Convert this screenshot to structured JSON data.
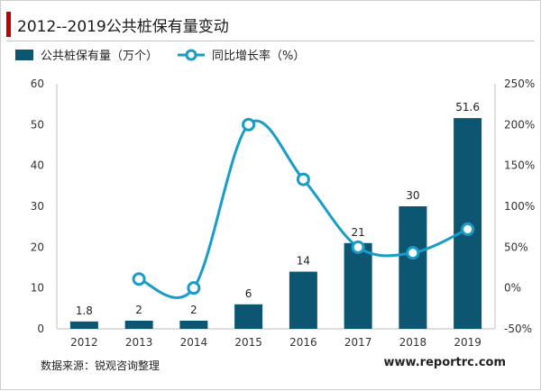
{
  "title": "2012--2019公共桩保有量变动",
  "source": "数据来源：锐观咨询整理",
  "website": "www.reportrc.com",
  "colors": {
    "bar": "#0d5671",
    "line": "#1a9cc9",
    "accent": "#c00000"
  },
  "chart_data": {
    "type": "bar",
    "categories": [
      "2012",
      "2013",
      "2014",
      "2015",
      "2016",
      "2017",
      "2018",
      "2019"
    ],
    "series": [
      {
        "name": "公共桩保有量（万个）",
        "type": "bar",
        "axis": "left",
        "values": [
          1.8,
          2,
          2,
          6,
          14,
          21,
          30,
          51.6
        ],
        "labels": [
          "1.8",
          "2",
          "2",
          "6",
          "14",
          "21",
          "30",
          "51.6"
        ]
      },
      {
        "name": "同比增长率（%）",
        "type": "line",
        "axis": "right",
        "smooth": true,
        "values": [
          null,
          11,
          0,
          200,
          133,
          50,
          43,
          72
        ]
      }
    ],
    "y_left": {
      "ylim": [
        0,
        60
      ],
      "ticks": [
        "0",
        "10",
        "20",
        "30",
        "40",
        "50",
        "60"
      ]
    },
    "y_right": {
      "ylim": [
        -50,
        250
      ],
      "ticks": [
        "-50%",
        "0%",
        "50%",
        "100%",
        "150%",
        "200%",
        "250%"
      ]
    },
    "legend_position": "top-left",
    "grid": false
  }
}
